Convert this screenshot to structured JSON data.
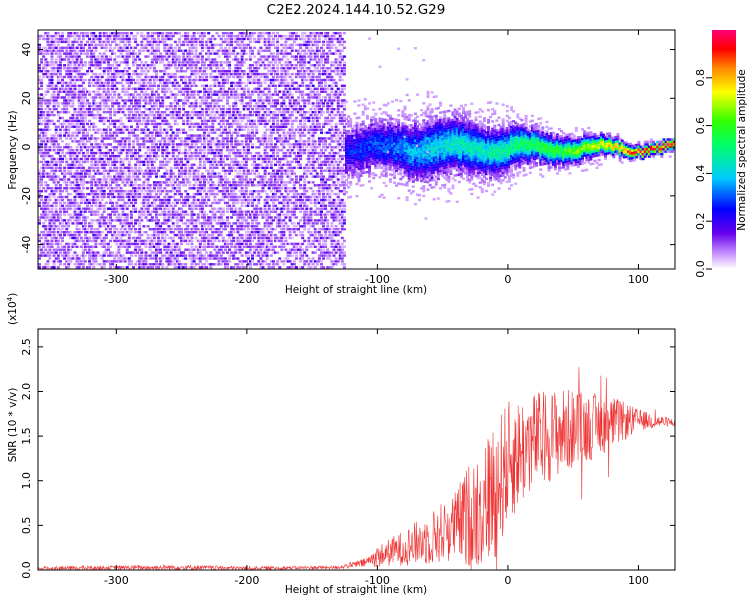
{
  "figure": {
    "title": "C2E2.2024.144.10.52.G29"
  },
  "chart_data": [
    {
      "type": "heatmap",
      "title": "",
      "xlabel": "Height of straight line (km)",
      "ylabel": "Frequency (Hz)",
      "xlim": [
        -360,
        128
      ],
      "ylim": [
        -50,
        48
      ],
      "x_ticks": [
        -300,
        -200,
        -100,
        0,
        100
      ],
      "y_ticks": [
        -40,
        -20,
        0,
        20,
        40
      ],
      "colorbar": {
        "label": "Normalized spectral amplitude",
        "range": [
          0,
          1
        ],
        "ticks": [
          "0.0",
          "0.2",
          "0.4",
          "0.6",
          "0.8"
        ],
        "colormap": "rainbow"
      },
      "description_points": {
        "noise_region_x": [
          -360,
          -125
        ],
        "signal_start_x": -125,
        "signal_center_freq": 0,
        "signal_profile": [
          {
            "x": -120,
            "width": 10,
            "amp": 0.25
          },
          {
            "x": -100,
            "width": 9,
            "amp": 0.3
          },
          {
            "x": -80,
            "width": 10,
            "amp": 0.35
          },
          {
            "x": -60,
            "width": 11,
            "amp": 0.4
          },
          {
            "x": -40,
            "width": 10,
            "amp": 0.45
          },
          {
            "x": -20,
            "width": 9,
            "amp": 0.45
          },
          {
            "x": 0,
            "width": 8,
            "amp": 0.5
          },
          {
            "x": 20,
            "width": 6,
            "amp": 0.55
          },
          {
            "x": 40,
            "width": 5,
            "amp": 0.6
          },
          {
            "x": 60,
            "width": 4,
            "amp": 0.7
          },
          {
            "x": 80,
            "width": 3,
            "amp": 0.8
          },
          {
            "x": 100,
            "width": 2,
            "amp": 0.95
          },
          {
            "x": 128,
            "width": 2,
            "amp": 0.95
          }
        ]
      }
    },
    {
      "type": "line",
      "title": "",
      "xlabel": "Height of straight line (km)",
      "ylabel": "SNR (10 * v/v)",
      "y_multiplier_label": "(x10",
      "y_multiplier_exp": "4",
      "xlim": [
        -360,
        128
      ],
      "ylim": [
        0,
        2.7
      ],
      "x_ticks": [
        -300,
        -200,
        -100,
        0,
        100
      ],
      "y_ticks": [
        "0.0",
        "0.5",
        "1.0",
        "1.5",
        "2.0",
        "2.5"
      ],
      "series": [
        {
          "name": "SNR",
          "color": "#ee3333",
          "envelope": [
            {
              "x": -360,
              "mean": 0.02,
              "spread": 0.02
            },
            {
              "x": -250,
              "mean": 0.03,
              "spread": 0.03
            },
            {
              "x": -200,
              "mean": 0.02,
              "spread": 0.02
            },
            {
              "x": -130,
              "mean": 0.03,
              "spread": 0.02
            },
            {
              "x": -110,
              "mean": 0.08,
              "spread": 0.05
            },
            {
              "x": -100,
              "mean": 0.15,
              "spread": 0.12
            },
            {
              "x": -80,
              "mean": 0.25,
              "spread": 0.2
            },
            {
              "x": -60,
              "mean": 0.35,
              "spread": 0.3
            },
            {
              "x": -40,
              "mean": 0.5,
              "spread": 0.4
            },
            {
              "x": -30,
              "mean": 0.6,
              "spread": 0.6
            },
            {
              "x": -20,
              "mean": 0.7,
              "spread": 0.7
            },
            {
              "x": -10,
              "mean": 0.9,
              "spread": 0.8
            },
            {
              "x": 0,
              "mean": 1.2,
              "spread": 0.7
            },
            {
              "x": 20,
              "mean": 1.45,
              "spread": 0.55
            },
            {
              "x": 40,
              "mean": 1.55,
              "spread": 0.5
            },
            {
              "x": 60,
              "mean": 1.6,
              "spread": 0.4
            },
            {
              "x": 80,
              "mean": 1.65,
              "spread": 0.3
            },
            {
              "x": 100,
              "mean": 1.68,
              "spread": 0.12
            },
            {
              "x": 128,
              "mean": 1.65,
              "spread": 0.04
            }
          ]
        }
      ]
    }
  ]
}
